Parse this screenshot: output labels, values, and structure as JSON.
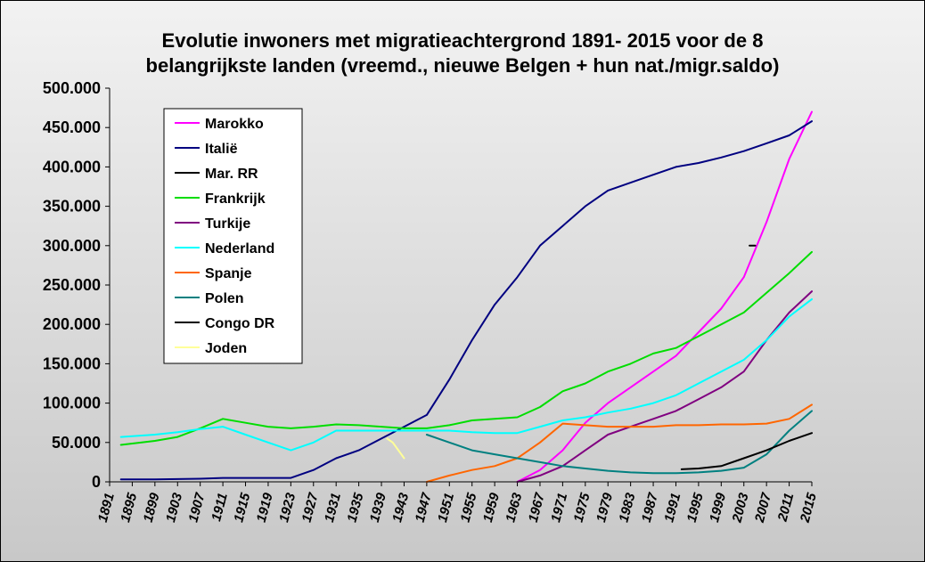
{
  "chart_data": {
    "type": "line",
    "title_lines": [
      "Evolutie inwoners met migratieachtergrond 1891- 2015 voor de 8",
      "belangrijkste landen (vreemd., nieuwe Belgen + hun nat./migr.saldo)"
    ],
    "xlabel": "",
    "ylabel": "",
    "xlim": [
      1891,
      2015
    ],
    "ylim": [
      0,
      500000
    ],
    "y_ticks": [
      0,
      50000,
      100000,
      150000,
      200000,
      250000,
      300000,
      350000,
      400000,
      450000,
      500000
    ],
    "y_tick_labels": [
      "0",
      "50.000",
      "100.000",
      "150.000",
      "200.000",
      "250.000",
      "300.000",
      "350.000",
      "400.000",
      "450.000",
      "500.000"
    ],
    "x_tick_labels": [
      "1891",
      "1895",
      "1899",
      "1903",
      "1907",
      "1911",
      "1915",
      "1919",
      "1923",
      "1927",
      "1931",
      "1935",
      "1939",
      "1943",
      "1947",
      "1951",
      "1955",
      "1959",
      "1963",
      "1967",
      "1971",
      "1975",
      "1979",
      "1983",
      "1987",
      "1991",
      "1995",
      "1999",
      "2003",
      "2007",
      "2011",
      "2015"
    ],
    "grid": false,
    "legend_position": "top-left",
    "series": [
      {
        "name": "Marokko",
        "color": "#ff00ff",
        "points": [
          [
            1963,
            0
          ],
          [
            1967,
            15000
          ],
          [
            1971,
            40000
          ],
          [
            1975,
            75000
          ],
          [
            1979,
            100000
          ],
          [
            1983,
            120000
          ],
          [
            1987,
            140000
          ],
          [
            1991,
            160000
          ],
          [
            1995,
            190000
          ],
          [
            1999,
            220000
          ],
          [
            2003,
            260000
          ],
          [
            2007,
            330000
          ],
          [
            2011,
            410000
          ],
          [
            2015,
            470000
          ]
        ]
      },
      {
        "name": "Italië",
        "color": "#000080",
        "points": [
          [
            1893,
            3000
          ],
          [
            1899,
            3000
          ],
          [
            1907,
            4000
          ],
          [
            1911,
            5000
          ],
          [
            1919,
            5000
          ],
          [
            1923,
            5000
          ],
          [
            1927,
            15000
          ],
          [
            1931,
            30000
          ],
          [
            1935,
            40000
          ],
          [
            1939,
            55000
          ],
          [
            1943,
            70000
          ],
          [
            1947,
            85000
          ],
          [
            1951,
            130000
          ],
          [
            1955,
            180000
          ],
          [
            1959,
            225000
          ],
          [
            1963,
            260000
          ],
          [
            1967,
            300000
          ],
          [
            1971,
            325000
          ],
          [
            1975,
            350000
          ],
          [
            1979,
            370000
          ],
          [
            1983,
            380000
          ],
          [
            1987,
            390000
          ],
          [
            1991,
            400000
          ],
          [
            1995,
            405000
          ],
          [
            1999,
            412000
          ],
          [
            2003,
            420000
          ],
          [
            2007,
            430000
          ],
          [
            2011,
            440000
          ],
          [
            2015,
            458000
          ]
        ]
      },
      {
        "name": "Mar. RR",
        "color": "#000000",
        "points": [
          [
            2004,
            300000
          ],
          [
            2005,
            300000
          ]
        ]
      },
      {
        "name": "Frankrijk",
        "color": "#00dd00",
        "points": [
          [
            1893,
            47000
          ],
          [
            1899,
            52000
          ],
          [
            1903,
            57000
          ],
          [
            1907,
            68000
          ],
          [
            1911,
            80000
          ],
          [
            1915,
            75000
          ],
          [
            1919,
            70000
          ],
          [
            1923,
            68000
          ],
          [
            1927,
            70000
          ],
          [
            1931,
            73000
          ],
          [
            1935,
            72000
          ],
          [
            1939,
            70000
          ],
          [
            1943,
            68000
          ],
          [
            1947,
            68000
          ],
          [
            1951,
            72000
          ],
          [
            1955,
            78000
          ],
          [
            1959,
            80000
          ],
          [
            1963,
            82000
          ],
          [
            1967,
            95000
          ],
          [
            1971,
            115000
          ],
          [
            1975,
            125000
          ],
          [
            1979,
            140000
          ],
          [
            1983,
            150000
          ],
          [
            1987,
            163000
          ],
          [
            1991,
            170000
          ],
          [
            1995,
            185000
          ],
          [
            1999,
            200000
          ],
          [
            2003,
            215000
          ],
          [
            2007,
            240000
          ],
          [
            2011,
            265000
          ],
          [
            2015,
            292000
          ]
        ]
      },
      {
        "name": "Turkije",
        "color": "#800080",
        "points": [
          [
            1963,
            0
          ],
          [
            1967,
            8000
          ],
          [
            1971,
            20000
          ],
          [
            1975,
            40000
          ],
          [
            1979,
            60000
          ],
          [
            1983,
            70000
          ],
          [
            1987,
            80000
          ],
          [
            1991,
            90000
          ],
          [
            1995,
            105000
          ],
          [
            1999,
            120000
          ],
          [
            2003,
            140000
          ],
          [
            2007,
            180000
          ],
          [
            2011,
            215000
          ],
          [
            2015,
            242000
          ]
        ]
      },
      {
        "name": "Nederland",
        "color": "#00ffff",
        "points": [
          [
            1893,
            57000
          ],
          [
            1899,
            60000
          ],
          [
            1903,
            63000
          ],
          [
            1907,
            67000
          ],
          [
            1911,
            70000
          ],
          [
            1915,
            60000
          ],
          [
            1919,
            50000
          ],
          [
            1923,
            40000
          ],
          [
            1927,
            50000
          ],
          [
            1931,
            65000
          ],
          [
            1935,
            65000
          ],
          [
            1939,
            65000
          ],
          [
            1943,
            65000
          ],
          [
            1947,
            65000
          ],
          [
            1951,
            65000
          ],
          [
            1955,
            63000
          ],
          [
            1959,
            62000
          ],
          [
            1963,
            62000
          ],
          [
            1967,
            70000
          ],
          [
            1971,
            78000
          ],
          [
            1975,
            82000
          ],
          [
            1979,
            88000
          ],
          [
            1983,
            93000
          ],
          [
            1987,
            100000
          ],
          [
            1991,
            110000
          ],
          [
            1995,
            125000
          ],
          [
            1999,
            140000
          ],
          [
            2003,
            155000
          ],
          [
            2007,
            180000
          ],
          [
            2011,
            210000
          ],
          [
            2015,
            232000
          ]
        ]
      },
      {
        "name": "Spanje",
        "color": "#ff6600",
        "points": [
          [
            1947,
            0
          ],
          [
            1951,
            8000
          ],
          [
            1955,
            15000
          ],
          [
            1959,
            20000
          ],
          [
            1963,
            30000
          ],
          [
            1967,
            50000
          ],
          [
            1971,
            74000
          ],
          [
            1975,
            72000
          ],
          [
            1979,
            70000
          ],
          [
            1983,
            70000
          ],
          [
            1987,
            70000
          ],
          [
            1991,
            72000
          ],
          [
            1995,
            72000
          ],
          [
            1999,
            73000
          ],
          [
            2003,
            73000
          ],
          [
            2007,
            74000
          ],
          [
            2011,
            80000
          ],
          [
            2015,
            98000
          ]
        ]
      },
      {
        "name": "Polen",
        "color": "#008080",
        "points": [
          [
            1947,
            60000
          ],
          [
            1951,
            50000
          ],
          [
            1955,
            40000
          ],
          [
            1959,
            35000
          ],
          [
            1963,
            30000
          ],
          [
            1967,
            25000
          ],
          [
            1971,
            20000
          ],
          [
            1975,
            17000
          ],
          [
            1979,
            14000
          ],
          [
            1983,
            12000
          ],
          [
            1987,
            11000
          ],
          [
            1991,
            11000
          ],
          [
            1995,
            12000
          ],
          [
            1999,
            14000
          ],
          [
            2003,
            18000
          ],
          [
            2007,
            35000
          ],
          [
            2011,
            65000
          ],
          [
            2015,
            90000
          ]
        ]
      },
      {
        "name": "Congo DR",
        "color": "#000000",
        "points": [
          [
            1992,
            16000
          ],
          [
            1995,
            17000
          ],
          [
            1999,
            20000
          ],
          [
            2003,
            30000
          ],
          [
            2007,
            40000
          ],
          [
            2011,
            52000
          ],
          [
            2015,
            62000
          ]
        ]
      },
      {
        "name": "Joden",
        "color": "#ffff99",
        "points": [
          [
            1940,
            55000
          ],
          [
            1941,
            50000
          ],
          [
            1942,
            40000
          ],
          [
            1943,
            30000
          ]
        ]
      }
    ]
  }
}
